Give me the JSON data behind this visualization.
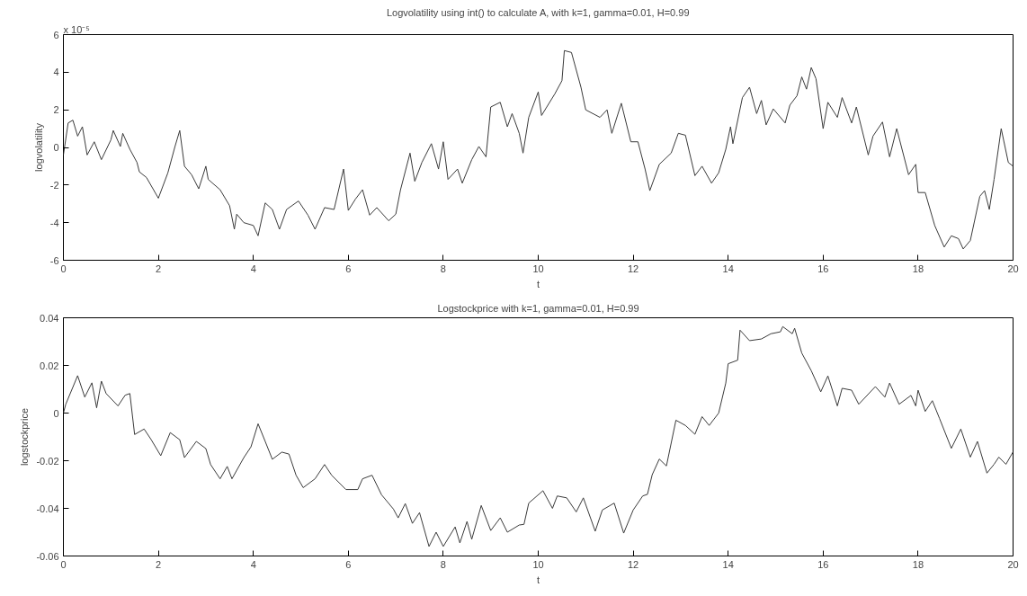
{
  "chart_data": [
    {
      "type": "line",
      "title": "Logvolatility using int() to calculate A, with k=1, gamma=0.01, H=0.99",
      "xlabel": "t",
      "ylabel": "logvolatility",
      "annotations": [
        "x 10⁻⁵"
      ],
      "xlim": [
        0,
        20
      ],
      "ylim": [
        -6,
        6
      ],
      "xticks": [
        0,
        2,
        4,
        6,
        8,
        10,
        12,
        14,
        16,
        18,
        20
      ],
      "yticks": [
        -6,
        -4,
        -2,
        0,
        2,
        4,
        6
      ],
      "grid": false,
      "line_style": "solid",
      "series": [
        {
          "color": "#3a3a3a",
          "x": [
            0,
            0.1,
            0.2,
            0.3,
            0.4,
            0.5,
            0.65,
            0.8,
            1.0,
            1.05,
            1.2,
            1.25,
            1.4,
            1.55,
            1.6,
            1.75,
            2.0,
            2.2,
            2.35,
            2.45,
            2.55,
            2.7,
            2.85,
            3.0,
            3.05,
            3.3,
            3.5,
            3.6,
            3.65,
            3.8,
            4.0,
            4.1,
            4.25,
            4.4,
            4.55,
            4.7,
            4.95,
            5.15,
            5.3,
            5.5,
            5.7,
            5.9,
            6.0,
            6.15,
            6.3,
            6.45,
            6.6,
            6.85,
            7.0,
            7.1,
            7.3,
            7.4,
            7.55,
            7.75,
            7.9,
            8.0,
            8.1,
            8.3,
            8.4,
            8.6,
            8.75,
            8.9,
            9.0,
            9.2,
            9.35,
            9.45,
            9.6,
            9.68,
            9.8,
            10.0,
            10.07,
            10.35,
            10.5,
            10.55,
            10.7,
            10.9,
            11.0,
            11.3,
            11.45,
            11.55,
            11.75,
            11.95,
            12.1,
            12.25,
            12.35,
            12.55,
            12.8,
            12.95,
            13.1,
            13.3,
            13.45,
            13.65,
            13.8,
            13.95,
            14.05,
            14.1,
            14.3,
            14.45,
            14.6,
            14.7,
            14.8,
            14.95,
            15.2,
            15.3,
            15.45,
            15.55,
            15.65,
            15.75,
            15.85,
            16.0,
            16.1,
            16.3,
            16.4,
            16.6,
            16.7,
            16.95,
            17.05,
            17.25,
            17.4,
            17.55,
            17.8,
            17.95,
            18.0,
            18.15,
            18.35,
            18.55,
            18.7,
            18.85,
            18.95,
            19.1,
            19.3,
            19.4,
            19.5,
            19.6,
            19.75,
            19.9,
            20.0
          ],
          "values": [
            -0.4,
            1.3,
            1.45,
            0.6,
            1.1,
            -0.4,
            0.3,
            -0.65,
            0.4,
            0.9,
            0.05,
            0.75,
            -0.1,
            -0.8,
            -1.3,
            -1.6,
            -2.7,
            -1.35,
            0.05,
            0.9,
            -1.0,
            -1.45,
            -2.2,
            -1.0,
            -1.7,
            -2.25,
            -3.1,
            -4.35,
            -3.55,
            -4.0,
            -4.15,
            -4.7,
            -2.95,
            -3.3,
            -4.35,
            -3.3,
            -2.85,
            -3.6,
            -4.35,
            -3.2,
            -3.3,
            -1.15,
            -3.35,
            -2.75,
            -2.25,
            -3.6,
            -3.2,
            -3.9,
            -3.55,
            -2.25,
            -0.3,
            -1.8,
            -0.8,
            0.2,
            -1.15,
            0.3,
            -1.7,
            -1.15,
            -1.9,
            -0.65,
            0.05,
            -0.5,
            2.15,
            2.4,
            1.1,
            1.8,
            0.75,
            -0.3,
            1.6,
            2.95,
            1.7,
            2.85,
            3.55,
            5.15,
            5.05,
            3.2,
            2.0,
            1.6,
            2.0,
            0.75,
            2.35,
            0.3,
            0.3,
            -1.15,
            -2.3,
            -0.9,
            -0.3,
            0.75,
            0.65,
            -1.5,
            -1.0,
            -1.9,
            -1.35,
            -0.1,
            1.1,
            0.2,
            2.65,
            3.2,
            1.8,
            2.5,
            1.2,
            2.05,
            1.3,
            2.25,
            2.75,
            3.75,
            3.1,
            4.25,
            3.65,
            1.0,
            2.4,
            1.6,
            2.65,
            1.3,
            2.15,
            -0.4,
            0.6,
            1.35,
            -0.5,
            1.0,
            -1.45,
            -0.9,
            -2.4,
            -2.4,
            -4.15,
            -5.3,
            -4.7,
            -4.85,
            -5.4,
            -4.95,
            -2.6,
            -2.3,
            -3.3,
            -1.7,
            1.0,
            -0.8,
            -1.0
          ]
        }
      ]
    },
    {
      "type": "line",
      "title": "Logstockprice with k=1, gamma=0.01, H=0.99",
      "xlabel": "t",
      "ylabel": "logstockprice",
      "xlim": [
        0,
        20
      ],
      "ylim": [
        -0.06,
        0.04
      ],
      "xticks": [
        0,
        2,
        4,
        6,
        8,
        10,
        12,
        14,
        16,
        18,
        20
      ],
      "yticks": [
        -0.06,
        -0.04,
        -0.02,
        0,
        0.02,
        0.04
      ],
      "grid": false,
      "line_style": "solid",
      "series": [
        {
          "color": "#3a3a3a",
          "x": [
            0,
            0.05,
            0.3,
            0.45,
            0.6,
            0.7,
            0.8,
            0.9,
            1.15,
            1.3,
            1.4,
            1.5,
            1.7,
            1.85,
            2.05,
            2.25,
            2.45,
            2.55,
            2.8,
            3.0,
            3.1,
            3.3,
            3.45,
            3.55,
            3.8,
            3.95,
            4.1,
            4.25,
            4.4,
            4.6,
            4.75,
            4.9,
            5.05,
            5.3,
            5.5,
            5.65,
            5.95,
            6.2,
            6.3,
            6.5,
            6.7,
            6.95,
            7.05,
            7.2,
            7.35,
            7.5,
            7.7,
            7.85,
            8.0,
            8.25,
            8.35,
            8.5,
            8.6,
            8.8,
            9.0,
            9.2,
            9.35,
            9.6,
            9.7,
            9.8,
            10.1,
            10.3,
            10.4,
            10.6,
            10.8,
            10.95,
            11.2,
            11.35,
            11.6,
            11.8,
            12.0,
            12.2,
            12.3,
            12.4,
            12.55,
            12.7,
            12.9,
            13.1,
            13.3,
            13.45,
            13.6,
            13.8,
            13.95,
            14.0,
            14.2,
            14.25,
            14.45,
            14.7,
            14.9,
            15.1,
            15.15,
            15.35,
            15.4,
            15.55,
            15.75,
            15.95,
            16.1,
            16.3,
            16.4,
            16.6,
            16.75,
            17.1,
            17.3,
            17.4,
            17.6,
            17.85,
            17.95,
            18.0,
            18.15,
            18.3,
            18.45,
            18.7,
            18.9,
            19.1,
            19.25,
            19.45,
            19.6,
            19.7,
            19.85,
            20.0
          ],
          "values": [
            0,
            0.0037,
            0.0157,
            0.0067,
            0.0127,
            0.0022,
            0.0134,
            0.0082,
            0.003,
            0.0075,
            0.0082,
            -0.009,
            -0.0067,
            -0.0112,
            -0.0179,
            -0.0082,
            -0.0112,
            -0.0187,
            -0.0119,
            -0.0149,
            -0.0216,
            -0.0276,
            -0.0224,
            -0.0276,
            -0.0187,
            -0.0142,
            -0.0045,
            -0.0119,
            -0.0194,
            -0.0164,
            -0.0172,
            -0.0261,
            -0.0313,
            -0.0276,
            -0.0216,
            -0.0261,
            -0.0321,
            -0.0321,
            -0.0276,
            -0.0261,
            -0.0343,
            -0.0403,
            -0.044,
            -0.038,
            -0.0463,
            -0.0418,
            -0.056,
            -0.05,
            -0.056,
            -0.0478,
            -0.0545,
            -0.0455,
            -0.053,
            -0.0388,
            -0.0493,
            -0.044,
            -0.05,
            -0.047,
            -0.0467,
            -0.0378,
            -0.0326,
            -0.04,
            -0.0348,
            -0.0356,
            -0.0415,
            -0.0356,
            -0.0496,
            -0.0407,
            -0.0378,
            -0.0504,
            -0.0407,
            -0.0348,
            -0.0341,
            -0.0259,
            -0.0193,
            -0.0222,
            -0.003,
            -0.0052,
            -0.0089,
            -0.0015,
            -0.0052,
            0.0,
            0.0126,
            0.0207,
            0.0222,
            0.0348,
            0.0304,
            0.0311,
            0.0333,
            0.0341,
            0.0363,
            0.0333,
            0.0356,
            0.0252,
            0.0178,
            0.0089,
            0.0156,
            0.003,
            0.0104,
            0.0096,
            0.0037,
            0.0111,
            0.0067,
            0.0126,
            0.0037,
            0.0074,
            0.003,
            0.0096,
            0.0007,
            0.0052,
            -0.0022,
            -0.0148,
            -0.0067,
            -0.0185,
            -0.0119,
            -0.0252,
            -0.0215,
            -0.0185,
            -0.0215,
            -0.0163
          ]
        }
      ]
    }
  ]
}
